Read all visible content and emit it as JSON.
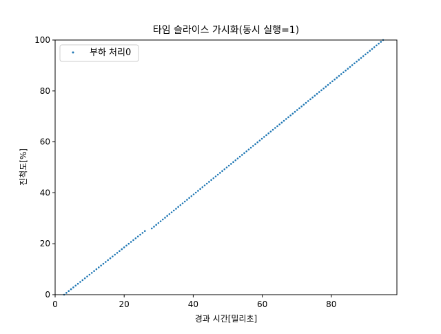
{
  "chart_data": {
    "type": "scatter",
    "title": "타임 슬라이스 가시화(동시 실행=1)",
    "xlabel": "경과 시간[밀리초]",
    "ylabel": "진척도[%]",
    "xlim": [
      0,
      99
    ],
    "ylim": [
      0,
      100
    ],
    "xticks": [
      0,
      20,
      40,
      60,
      80
    ],
    "yticks": [
      0,
      20,
      40,
      60,
      80,
      100
    ],
    "grid": false,
    "legend": "top-left",
    "marker_color": "#1f77b4",
    "series": [
      {
        "name": "부하 처리0",
        "segments": [
          {
            "x_start": 2.6,
            "x_end": 26.0,
            "y_start": 0.0,
            "y_end": 25.0,
            "count": 36
          },
          {
            "x_start": 28.0,
            "x_end": 95.0,
            "y_start": 26.0,
            "y_end": 100.0,
            "count": 106
          }
        ]
      }
    ]
  }
}
